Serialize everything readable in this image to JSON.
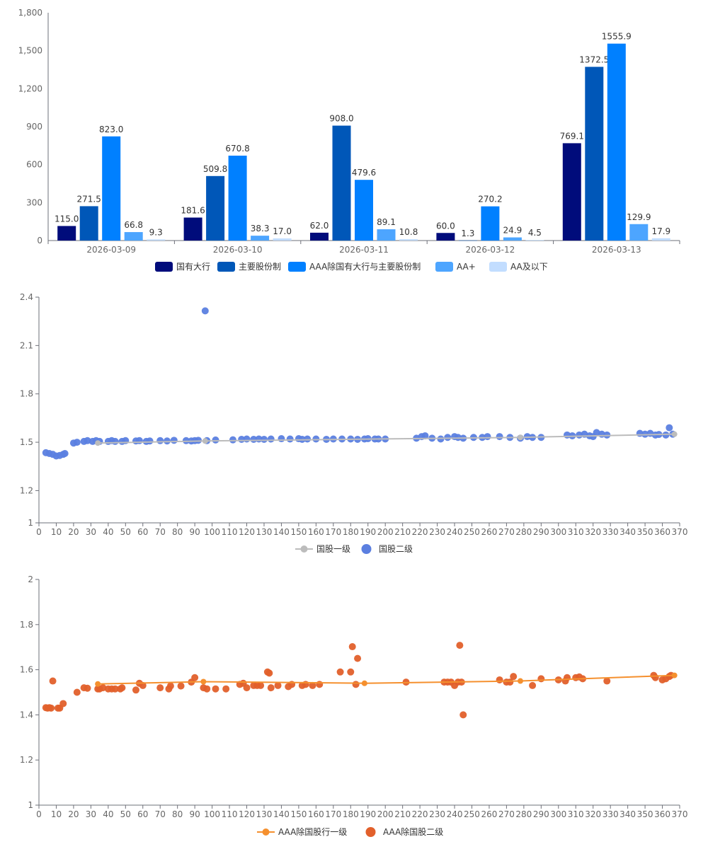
{
  "chart_data": [
    {
      "type": "bar",
      "categories": [
        "2026-03-09",
        "2026-03-10",
        "2026-03-11",
        "2026-03-12",
        "2026-03-13"
      ],
      "ylim": [
        0,
        1800
      ],
      "yticks": [
        0,
        300,
        600,
        900,
        1200,
        1500,
        1800
      ],
      "ytick_labels": [
        "0",
        "300",
        "600",
        "900",
        "1,200",
        "1,500",
        "1,800"
      ],
      "legend_position": "bottom",
      "series": [
        {
          "name": "国有大行",
          "color": "#000c7b",
          "values": [
            115.0,
            181.6,
            62.0,
            60.0,
            769.1
          ],
          "labels": [
            "115.0",
            "181.6",
            "62.0",
            "60.0",
            "769.1"
          ]
        },
        {
          "name": "主要股份制",
          "color": "#0057b8",
          "values": [
            271.5,
            509.8,
            908.0,
            1.3,
            1372.5
          ],
          "labels": [
            "271.5",
            "509.8",
            "908.0",
            "1.3",
            "1372.5"
          ]
        },
        {
          "name": "AAA除国有大行与主要股份制",
          "color": "#0080ff",
          "values": [
            823.0,
            670.8,
            479.6,
            270.2,
            1555.9
          ],
          "labels": [
            "823.0",
            "670.8",
            "479.6",
            "270.2",
            "1555.9"
          ]
        },
        {
          "name": "AA+",
          "color": "#4da5ff",
          "values": [
            66.8,
            38.3,
            89.1,
            24.9,
            129.9
          ],
          "labels": [
            "66.8",
            "38.3",
            "89.1",
            "24.9",
            "129.9"
          ]
        },
        {
          "name": "AA及以下",
          "color": "#c2ddff",
          "values": [
            9.3,
            17.0,
            10.8,
            4.5,
            17.9
          ],
          "labels": [
            "9.3",
            "17.0",
            "10.8",
            "4.5",
            "17.9"
          ]
        }
      ]
    },
    {
      "type": "scatter",
      "xlim": [
        0,
        370
      ],
      "ylim": [
        1,
        2.4
      ],
      "xticks": [
        0,
        10,
        20,
        30,
        40,
        50,
        60,
        70,
        80,
        90,
        100,
        110,
        120,
        130,
        140,
        150,
        160,
        170,
        180,
        190,
        200,
        210,
        220,
        230,
        240,
        250,
        260,
        270,
        280,
        290,
        300,
        310,
        320,
        330,
        340,
        350,
        360,
        370
      ],
      "yticks": [
        1,
        1.2,
        1.5,
        1.8,
        2.1,
        2.4
      ],
      "ytick_labels": [
        "1",
        "1.2",
        "1.5",
        "1.8",
        "2.1",
        "2.4"
      ],
      "legend_position": "bottom",
      "series": [
        {
          "name": "国股一级",
          "kind": "line",
          "color": "#bcbcbc",
          "x": [
            34,
            96,
            278,
            367
          ],
          "y": [
            1.495,
            1.508,
            1.53,
            1.55
          ]
        },
        {
          "name": "国股二级",
          "kind": "scatter",
          "color": "#5b7fe0",
          "x": [
            4,
            6,
            8,
            10,
            12,
            14,
            15,
            20,
            22,
            26,
            28,
            31,
            33,
            35,
            40,
            42,
            44,
            48,
            50,
            56,
            58,
            62,
            64,
            70,
            74,
            78,
            85,
            88,
            90,
            92,
            97,
            102,
            112,
            117,
            120,
            124,
            127,
            130,
            134,
            140,
            145,
            150,
            152,
            155,
            160,
            166,
            170,
            175,
            180,
            184,
            188,
            190,
            194,
            196,
            200,
            218,
            221,
            223,
            227,
            232,
            236,
            240,
            242,
            245,
            251,
            256,
            259,
            266,
            272,
            278,
            282,
            285,
            290,
            305,
            308,
            312,
            315,
            318,
            320,
            322,
            325,
            328,
            347,
            350,
            353,
            356,
            358,
            362,
            364,
            366,
            96
          ],
          "y": [
            1.435,
            1.43,
            1.425,
            1.415,
            1.418,
            1.425,
            1.43,
            1.495,
            1.5,
            1.505,
            1.51,
            1.505,
            1.51,
            1.505,
            1.505,
            1.51,
            1.505,
            1.505,
            1.51,
            1.508,
            1.51,
            1.505,
            1.508,
            1.51,
            1.508,
            1.512,
            1.51,
            1.508,
            1.51,
            1.512,
            1.51,
            1.514,
            1.515,
            1.518,
            1.52,
            1.518,
            1.52,
            1.518,
            1.52,
            1.522,
            1.52,
            1.522,
            1.518,
            1.52,
            1.52,
            1.518,
            1.52,
            1.52,
            1.52,
            1.518,
            1.52,
            1.522,
            1.52,
            1.52,
            1.52,
            1.525,
            1.535,
            1.54,
            1.525,
            1.52,
            1.53,
            1.535,
            1.53,
            1.525,
            1.53,
            1.53,
            1.535,
            1.535,
            1.53,
            1.525,
            1.535,
            1.53,
            1.53,
            1.545,
            1.54,
            1.545,
            1.55,
            1.54,
            1.535,
            1.56,
            1.55,
            1.545,
            1.555,
            1.55,
            1.555,
            1.545,
            1.548,
            1.545,
            1.59,
            1.55,
            2.315
          ]
        }
      ]
    },
    {
      "type": "scatter",
      "xlim": [
        0,
        370
      ],
      "ylim": [
        1,
        2
      ],
      "xticks": [
        0,
        10,
        20,
        30,
        40,
        50,
        60,
        70,
        80,
        90,
        100,
        110,
        120,
        130,
        140,
        150,
        160,
        170,
        180,
        190,
        200,
        210,
        220,
        230,
        240,
        250,
        260,
        270,
        280,
        290,
        300,
        310,
        320,
        330,
        340,
        350,
        360,
        370
      ],
      "yticks": [
        1,
        1.2,
        1.4,
        1.6,
        1.8,
        2
      ],
      "ytick_labels": [
        "1",
        "1.2",
        "1.4",
        "1.6",
        "1.8",
        "2"
      ],
      "legend_position": "bottom",
      "series": [
        {
          "name": "AAA除国股行一级",
          "kind": "line",
          "color": "#f5902e",
          "x": [
            34,
            95,
            188,
            278,
            367
          ],
          "y": [
            1.537,
            1.547,
            1.54,
            1.55,
            1.575
          ]
        },
        {
          "name": "AAA除国股二级",
          "kind": "scatter",
          "color": "#e2602b",
          "x": [
            4,
            5,
            6,
            7,
            8,
            11,
            12,
            14,
            22,
            26,
            28,
            34,
            35,
            37,
            40,
            42,
            44,
            47,
            48,
            56,
            58,
            60,
            70,
            75,
            76,
            82,
            88,
            90,
            95,
            97,
            102,
            108,
            116,
            118,
            120,
            124,
            126,
            128,
            132,
            133,
            134,
            138,
            144,
            146,
            152,
            154,
            158,
            162,
            174,
            180,
            181,
            183,
            184,
            212,
            234,
            236,
            238,
            240,
            242,
            243,
            244,
            245,
            266,
            270,
            272,
            274,
            285,
            290,
            300,
            304,
            305,
            310,
            312,
            314,
            328,
            355,
            356,
            360,
            362,
            364,
            365
          ],
          "y": [
            1.432,
            1.43,
            1.432,
            1.43,
            1.55,
            1.43,
            1.43,
            1.45,
            1.5,
            1.52,
            1.518,
            1.515,
            1.515,
            1.52,
            1.515,
            1.515,
            1.515,
            1.515,
            1.52,
            1.51,
            1.54,
            1.53,
            1.52,
            1.515,
            1.528,
            1.528,
            1.545,
            1.565,
            1.52,
            1.515,
            1.515,
            1.515,
            1.535,
            1.54,
            1.52,
            1.53,
            1.53,
            1.53,
            1.59,
            1.585,
            1.52,
            1.53,
            1.525,
            1.535,
            1.53,
            1.535,
            1.53,
            1.535,
            1.59,
            1.59,
            1.702,
            1.535,
            1.65,
            1.545,
            1.545,
            1.545,
            1.545,
            1.53,
            1.545,
            1.708,
            1.545,
            1.4,
            1.555,
            1.545,
            1.545,
            1.57,
            1.53,
            1.56,
            1.555,
            1.55,
            1.565,
            1.565,
            1.568,
            1.56,
            1.55,
            1.575,
            1.565,
            1.555,
            1.56,
            1.57,
            1.575
          ]
        }
      ]
    }
  ]
}
